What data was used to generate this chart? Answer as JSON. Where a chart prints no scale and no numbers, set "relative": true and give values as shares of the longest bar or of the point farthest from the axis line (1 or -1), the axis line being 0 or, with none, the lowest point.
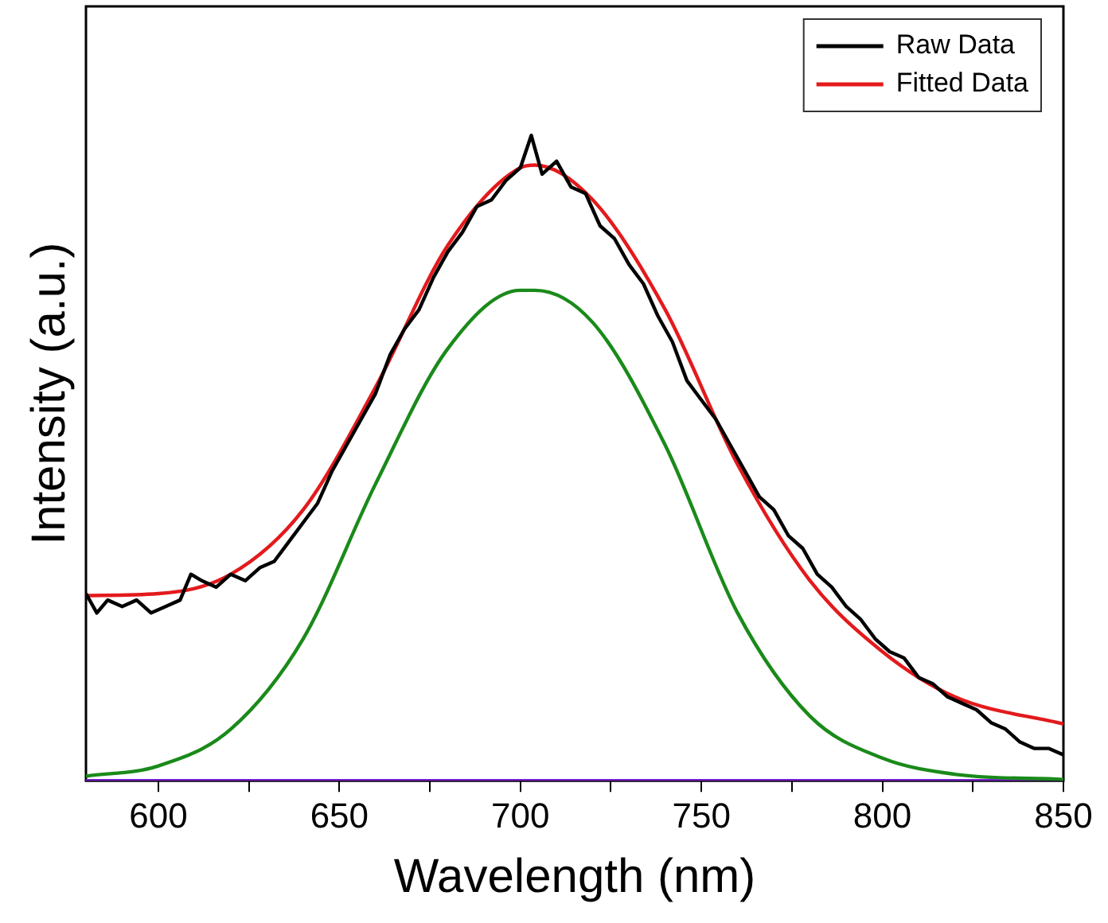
{
  "chart_data": {
    "type": "line",
    "xlabel": "Wavelength (nm)",
    "ylabel": "Intensity (a.u.)",
    "relative": true,
    "xlim": [
      580,
      850
    ],
    "xticks": [
      600,
      {
        "value": 625,
        "label": null
      },
      650,
      {
        "value": 675,
        "label": null
      },
      700,
      {
        "value": 725,
        "label": null
      },
      750,
      {
        "value": 775,
        "label": null
      },
      800,
      {
        "value": 825,
        "label": null
      },
      850
    ],
    "grid": false,
    "legend": "top right",
    "marker": "none",
    "line_style": "solid",
    "series": [
      {
        "name": "Raw Data",
        "color": "#000000",
        "x": [
          580,
          583,
          586,
          590,
          594,
          598,
          602,
          606,
          609,
          612,
          616,
          620,
          624,
          628,
          632,
          636,
          640,
          644,
          648,
          652,
          656,
          660,
          664,
          668,
          672,
          676,
          680,
          684,
          688,
          692,
          696,
          700,
          703,
          706,
          710,
          714,
          718,
          722,
          726,
          730,
          734,
          738,
          742,
          746,
          750,
          754,
          758,
          762,
          766,
          770,
          774,
          778,
          782,
          786,
          790,
          794,
          798,
          802,
          806,
          810,
          814,
          818,
          822,
          826,
          830,
          834,
          838,
          842,
          846,
          850
        ],
        "values": [
          0.29,
          0.26,
          0.28,
          0.27,
          0.28,
          0.26,
          0.27,
          0.28,
          0.32,
          0.31,
          0.3,
          0.32,
          0.31,
          0.33,
          0.34,
          0.37,
          0.4,
          0.43,
          0.48,
          0.52,
          0.56,
          0.6,
          0.66,
          0.7,
          0.73,
          0.78,
          0.82,
          0.85,
          0.89,
          0.9,
          0.93,
          0.95,
          1.0,
          0.94,
          0.96,
          0.92,
          0.91,
          0.86,
          0.84,
          0.8,
          0.77,
          0.72,
          0.68,
          0.62,
          0.59,
          0.56,
          0.52,
          0.48,
          0.44,
          0.42,
          0.38,
          0.36,
          0.32,
          0.3,
          0.27,
          0.25,
          0.22,
          0.2,
          0.19,
          0.16,
          0.15,
          0.13,
          0.12,
          0.11,
          0.09,
          0.08,
          0.06,
          0.05,
          0.05,
          0.04
        ]
      },
      {
        "name": "Fitted Data",
        "color": "#e31a1c",
        "x": [
          580,
          600,
          620,
          640,
          660,
          680,
          700,
          704,
          720,
          740,
          760,
          780,
          800,
          820,
          850
        ],
        "values": [
          0.287,
          0.29,
          0.32,
          0.42,
          0.61,
          0.83,
          0.95,
          0.954,
          0.9,
          0.73,
          0.49,
          0.31,
          0.2,
          0.13,
          0.088
        ]
      },
      {
        "color": "#1a8a1a",
        "x": [
          580,
          600,
          620,
          640,
          660,
          680,
          700,
          704,
          720,
          740,
          760,
          780,
          800,
          820,
          850
        ],
        "values": [
          0.007,
          0.023,
          0.08,
          0.22,
          0.46,
          0.67,
          0.76,
          0.76,
          0.71,
          0.52,
          0.26,
          0.1,
          0.035,
          0.01,
          0.002
        ]
      },
      {
        "color": "#7a1fd0",
        "x": [
          580,
          850
        ],
        "values": [
          0,
          0
        ]
      }
    ]
  }
}
